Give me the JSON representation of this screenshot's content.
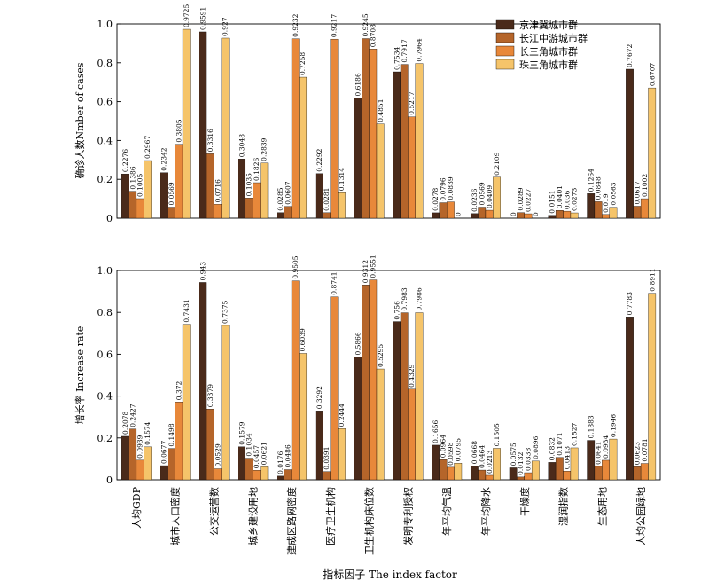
{
  "chart_data": {
    "type": "bar",
    "categories": [
      "人均GDP",
      "城市人口密度",
      "公交运营数",
      "城乡建设用地",
      "建成区路网密度",
      "医疗卫生机构",
      "卫生机构床位数",
      "发明专利授权",
      "年平均气温",
      "年平均降水",
      "干燥度",
      "湿润指数",
      "生态用地",
      "人均公园绿地"
    ],
    "xlabel": "指标因子 The index factor",
    "colors": [
      "#4a2a1a",
      "#b5652a",
      "#e8883a",
      "#f5c46a"
    ],
    "legend": {
      "placement": "top-right",
      "entries": [
        "京津冀城市群",
        "长江中游城市群",
        "长三角城市群",
        "珠三角城市群"
      ]
    },
    "panels": [
      {
        "ylabel": "确诊人数Nmber of cases",
        "ylim": [
          0,
          1.0
        ],
        "yticks": [
          "0",
          "0.2",
          "0.4",
          "0.6",
          "0.8",
          "1.0"
        ],
        "series": [
          {
            "name": "京津冀城市群",
            "values": [
              0.2276,
              0.2342,
              0.9591,
              0.3048,
              0.0285,
              0.2292,
              0.6186,
              0.7534,
              0.0278,
              0.0236,
              0,
              0.0151,
              0.1264,
              0.7672
            ]
          },
          {
            "name": "长江中游城市群",
            "values": [
              0.1386,
              0.0569,
              0.3316,
              0.1035,
              0.0607,
              0.0281,
              0.9245,
              0.7917,
              0.0796,
              0.0569,
              0.0289,
              0.0401,
              0.0848,
              0.0617
            ]
          },
          {
            "name": "长三角城市群",
            "values": [
              0.1005,
              0.3805,
              0.0716,
              0.1826,
              0.9232,
              0.9217,
              0.8708,
              0.5217,
              0.0839,
              0.0409,
              0.0227,
              0.036,
              0.019,
              0.1002
            ]
          },
          {
            "name": "珠三角城市群",
            "values": [
              0.2967,
              0.9725,
              0.927,
              0.2839,
              0.7258,
              0.1314,
              0.4851,
              0.7964,
              0,
              0.2109,
              0,
              0.0273,
              0.0563,
              0.6707
            ]
          }
        ],
        "labels": [
          [
            "0.2276",
            "0.2342",
            "0.9591",
            "0.3048",
            "0.0285",
            "0.2292",
            "0.6186",
            "0.7534",
            "0.0278",
            "0.0236",
            "0",
            "0.0151",
            "0.1264",
            "0.7672"
          ],
          [
            "0.1386",
            "0.0569",
            "0.3316",
            "0.1035",
            "0.0607",
            "0.0281",
            "0.9245",
            "0.7917",
            "0.0796",
            "0.0569",
            "0.0289",
            "0.0401",
            "0.0848",
            "0.0617"
          ],
          [
            "0.1005",
            "0.3805",
            "0.0716",
            "0.1826",
            "0.9232",
            "0.9217",
            "0.8708",
            "0.5217",
            "0.0839",
            "0.0409",
            "0.0227",
            "0.036",
            "0.019",
            "0.1002"
          ],
          [
            "0.2967",
            "0.9725",
            "0.927",
            "0.2839",
            "0.7258",
            "0.1314",
            "0.4851",
            "0.7964",
            "0",
            "0.2109",
            "0",
            "0.0273",
            "0.0563",
            "0.6707"
          ]
        ]
      },
      {
        "ylabel": "增长率 Increase rate",
        "ylim": [
          0,
          1.0
        ],
        "yticks": [
          "0",
          "0.2",
          "0.4",
          "0.6",
          "0.8",
          "1.0"
        ],
        "series": [
          {
            "name": "京津冀城市群",
            "values": [
              0.2078,
              0.0677,
              0.943,
              0.1579,
              0.0176,
              0.3292,
              0.5866,
              0.756,
              0.1656,
              0.0668,
              0.0575,
              0.0832,
              0.1883,
              0.7783
            ]
          },
          {
            "name": "长江中游城市群",
            "values": [
              0.2427,
              0.1498,
              0.3379,
              0.1034,
              0.0486,
              0.0391,
              0.9312,
              0.7983,
              0.0964,
              0.0464,
              0.0132,
              0.1071,
              0.0641,
              0.0623
            ]
          },
          {
            "name": "长三角城市群",
            "values": [
              0.0939,
              0.372,
              0.0529,
              0.0457,
              0.9505,
              0.8741,
              0.9551,
              0.4329,
              0.0598,
              0.0213,
              0.0338,
              0.0413,
              0.0934,
              0.0781
            ]
          },
          {
            "name": "珠三角城市群",
            "values": [
              0.1574,
              0.7431,
              0.7375,
              0.0621,
              0.6039,
              0.2444,
              0.5295,
              0.7986,
              0.0795,
              0.1505,
              0.0896,
              0.1527,
              0.1946,
              0.8911
            ]
          }
        ],
        "labels": [
          [
            "0.2078",
            "0.0677",
            "0.943",
            "0.1579",
            "0.0176",
            "0.3292",
            "0.5866",
            "0.756",
            "0.1656",
            "0.0668",
            "0.0575",
            "0.0832",
            "0.1883",
            "0.7783"
          ],
          [
            "0.2427",
            "0.1498",
            "0.3379",
            "0.1034",
            "0.0486",
            "0.0391",
            "0.9312",
            "0.7983",
            "0.0964",
            "0.0464",
            "0.0132",
            "0.1071",
            "0.0641",
            "0.0623"
          ],
          [
            "0.0939",
            "0.372",
            "0.0529",
            "0.0457",
            "0.9505",
            "0.8741",
            "0.9551",
            "0.4329",
            "0.0598",
            "0.0213",
            "0.0338",
            "0.0413",
            "0.0934",
            "0.0781"
          ],
          [
            "0.1574",
            "0.7431",
            "0.7375",
            "0.0621",
            "0.6039",
            "0.2444",
            "0.5295",
            "0.7986",
            "0.0795",
            "0.1505",
            "0.0896",
            "0.1527",
            "0.1946",
            "0.8911"
          ]
        ]
      }
    ]
  }
}
